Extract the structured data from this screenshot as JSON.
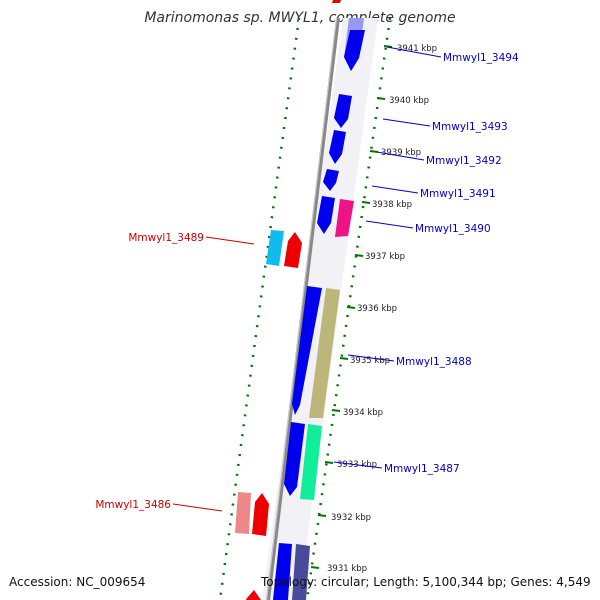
{
  "title": "Marinomonas sp. MWYL1, complete genome",
  "footer": {
    "accession": "Accession: NC_009654",
    "topology": "Topology: circular; Length: 5,100,344 bp; Genes: 4,549"
  },
  "colors": {
    "forward_gene_label": "#0000cc",
    "reverse_gene_label": "#cc0000",
    "backbone": "#888888",
    "ticks": "#007700",
    "gene_blue": "#0000ee",
    "gene_magenta": "#ee1188",
    "gene_cyan": "#11bbee",
    "gene_red": "#ee0000",
    "gene_khaki": "#bdb67a",
    "gene_mint": "#11ee99",
    "gene_pink": "#ee8888",
    "gene_slate": "#4a4a9a"
  },
  "scale_labels": [
    "3941 kbp",
    "3940 kbp",
    "3939 kbp",
    "3938 kbp",
    "3937 kbp",
    "3936 kbp",
    "3935 kbp",
    "3934 kbp",
    "3933 kbp",
    "3932 kbp",
    "3931 kbp"
  ],
  "gene_labels": {
    "g3494": "Mmwyl1_3494",
    "g3493": "Mmwyl1_3493",
    "g3492": "Mmwyl1_3492",
    "g3491": "Mmwyl1_3491",
    "g3490": "Mmwyl1_3490",
    "g3489": "Mmwyl1_3489",
    "g3488": "Mmwyl1_3488",
    "g3487": "Mmwyl1_3487",
    "g3486": "Mmwyl1_3486"
  }
}
